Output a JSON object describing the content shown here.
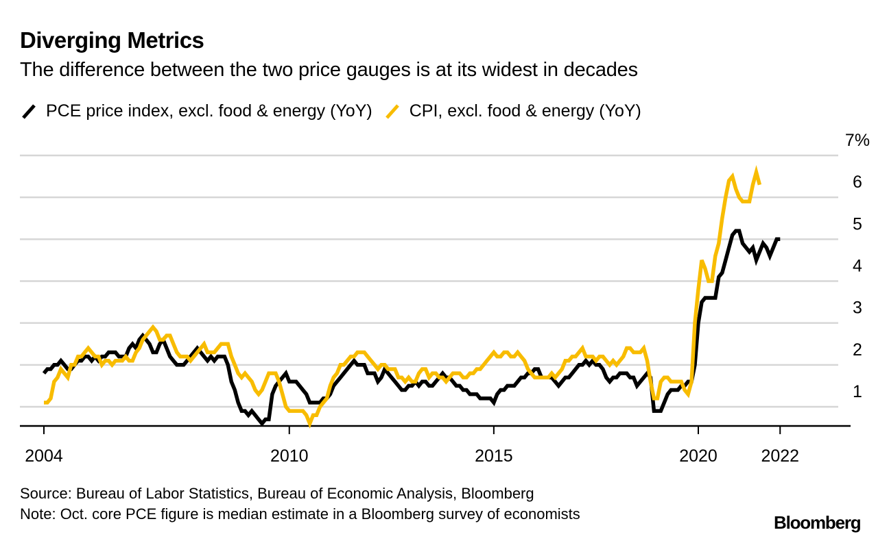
{
  "title": "Diverging Metrics",
  "subtitle": "The difference between the two price gauges is at its widest in decades",
  "legend": [
    {
      "label": "PCE price index, excl. food & energy (YoY)",
      "color": "#000000"
    },
    {
      "label": "CPI, excl. food & energy (YoY)",
      "color": "#F8BC00"
    }
  ],
  "source": "Source: Bureau of Labor Statistics, Bureau of Economic Analysis, Bloomberg",
  "note": "Note: Oct. core PCE figure is median estimate in a Bloomberg survey of economists",
  "brand": "Bloomberg",
  "chart_data": {
    "type": "line",
    "title": "Diverging Metrics",
    "subtitle": "The difference between the two price gauges is at its widest in decades",
    "xlabel": "",
    "ylabel": "",
    "x_start": "2004-01",
    "x_end": "2022-10",
    "frequency": "monthly",
    "xlim": [
      2004.0,
      2022.83
    ],
    "ylim": [
      0.55,
      7
    ],
    "y_ticks": [
      1,
      2,
      3,
      4,
      5,
      6,
      7
    ],
    "y_tick_labels": [
      "1",
      "2",
      "3",
      "4",
      "5",
      "6",
      "7%"
    ],
    "x_ticks": [
      2004,
      2010,
      2015,
      2020,
      2022
    ],
    "x_tick_labels": [
      "2004",
      "2010",
      "2015",
      "2020",
      "2022"
    ],
    "grid": true,
    "legend_position": "top-left",
    "series": [
      {
        "name": "PCE price index, excl. food & energy (YoY)",
        "color": "#000000",
        "values": [
          1.8,
          1.9,
          1.9,
          2.0,
          2.0,
          2.1,
          2.0,
          1.9,
          1.9,
          2.0,
          2.1,
          2.1,
          2.2,
          2.2,
          2.1,
          2.2,
          2.1,
          2.2,
          2.2,
          2.3,
          2.3,
          2.3,
          2.2,
          2.2,
          2.2,
          2.4,
          2.5,
          2.4,
          2.6,
          2.7,
          2.6,
          2.5,
          2.3,
          2.3,
          2.5,
          2.6,
          2.4,
          2.2,
          2.1,
          2.0,
          2.0,
          2.0,
          2.1,
          2.2,
          2.3,
          2.4,
          2.3,
          2.2,
          2.1,
          2.2,
          2.1,
          2.2,
          2.2,
          2.2,
          2.0,
          1.6,
          1.4,
          1.1,
          0.9,
          0.9,
          0.8,
          0.9,
          0.8,
          0.7,
          0.6,
          0.7,
          0.7,
          1.3,
          1.5,
          1.6,
          1.7,
          1.8,
          1.6,
          1.6,
          1.6,
          1.5,
          1.4,
          1.3,
          1.1,
          1.1,
          1.1,
          1.1,
          1.2,
          1.2,
          1.3,
          1.5,
          1.6,
          1.7,
          1.8,
          1.9,
          2.0,
          2.1,
          2.0,
          2.0,
          2.0,
          1.8,
          1.8,
          1.8,
          1.6,
          1.7,
          1.9,
          1.8,
          1.7,
          1.6,
          1.5,
          1.4,
          1.4,
          1.5,
          1.5,
          1.6,
          1.5,
          1.6,
          1.6,
          1.5,
          1.5,
          1.6,
          1.7,
          1.8,
          1.7,
          1.7,
          1.6,
          1.5,
          1.5,
          1.4,
          1.4,
          1.3,
          1.3,
          1.3,
          1.2,
          1.2,
          1.2,
          1.2,
          1.1,
          1.3,
          1.4,
          1.4,
          1.5,
          1.5,
          1.5,
          1.6,
          1.7,
          1.7,
          1.8,
          1.8,
          1.9,
          1.9,
          1.7,
          1.7,
          1.7,
          1.7,
          1.6,
          1.5,
          1.6,
          1.7,
          1.7,
          1.8,
          1.9,
          2.0,
          2.0,
          2.1,
          2.0,
          2.1,
          2.0,
          2.0,
          1.9,
          1.7,
          1.6,
          1.7,
          1.7,
          1.8,
          1.8,
          1.8,
          1.7,
          1.7,
          1.5,
          1.6,
          1.7,
          1.8,
          1.7,
          0.9,
          0.9,
          0.9,
          1.1,
          1.3,
          1.4,
          1.4,
          1.4,
          1.5,
          1.5,
          1.6,
          1.6,
          2.0,
          3.0,
          3.5,
          3.6,
          3.6,
          3.6,
          3.6,
          4.1,
          4.2,
          4.5,
          4.8,
          5.1,
          5.2,
          5.2,
          4.9,
          4.8,
          4.7,
          4.8,
          4.5,
          4.7,
          4.9,
          4.8,
          4.6,
          4.8,
          5.0,
          5.0
        ]
      },
      {
        "name": "CPI, excl. food & energy (YoY)",
        "color": "#F8BC00",
        "values": [
          1.1,
          1.1,
          1.2,
          1.6,
          1.7,
          1.9,
          1.8,
          1.7,
          2.0,
          2.0,
          2.2,
          2.2,
          2.3,
          2.4,
          2.3,
          2.2,
          2.2,
          2.0,
          2.1,
          2.1,
          2.0,
          2.1,
          2.1,
          2.1,
          2.2,
          2.1,
          2.1,
          2.3,
          2.4,
          2.6,
          2.7,
          2.8,
          2.9,
          2.8,
          2.6,
          2.6,
          2.7,
          2.7,
          2.5,
          2.3,
          2.2,
          2.2,
          2.2,
          2.1,
          2.2,
          2.3,
          2.4,
          2.5,
          2.3,
          2.3,
          2.3,
          2.4,
          2.5,
          2.5,
          2.5,
          2.2,
          2.0,
          1.8,
          1.7,
          1.8,
          1.7,
          1.6,
          1.4,
          1.3,
          1.4,
          1.6,
          1.8,
          1.8,
          1.8,
          1.6,
          1.3,
          1.0,
          0.9,
          0.9,
          0.9,
          0.9,
          0.9,
          0.8,
          0.6,
          0.8,
          0.8,
          1.0,
          1.1,
          1.2,
          1.5,
          1.7,
          1.8,
          2.0,
          2.0,
          2.1,
          2.2,
          2.2,
          2.3,
          2.3,
          2.3,
          2.2,
          2.1,
          2.0,
          1.9,
          2.0,
          2.0,
          1.9,
          1.9,
          1.9,
          1.7,
          1.7,
          1.6,
          1.7,
          1.6,
          1.6,
          1.8,
          1.9,
          1.9,
          1.7,
          1.8,
          1.8,
          1.7,
          1.7,
          1.6,
          1.7,
          1.8,
          1.8,
          1.8,
          1.7,
          1.7,
          1.8,
          1.8,
          1.9,
          1.9,
          2.0,
          2.1,
          2.2,
          2.3,
          2.2,
          2.2,
          2.3,
          2.3,
          2.2,
          2.2,
          2.3,
          2.2,
          2.1,
          1.9,
          1.8,
          1.7,
          1.7,
          1.7,
          1.7,
          1.7,
          1.8,
          1.7,
          1.8,
          1.9,
          2.1,
          2.1,
          2.2,
          2.2,
          2.3,
          2.4,
          2.2,
          2.2,
          2.2,
          2.1,
          2.2,
          2.2,
          2.1,
          2.0,
          2.1,
          2.0,
          2.1,
          2.2,
          2.4,
          2.4,
          2.3,
          2.3,
          2.3,
          2.4,
          2.1,
          1.6,
          1.2,
          1.2,
          1.6,
          1.7,
          1.7,
          1.6,
          1.6,
          1.6,
          1.6,
          1.4,
          1.3,
          1.6,
          3.0,
          3.8,
          4.5,
          4.3,
          4.0,
          4.0,
          4.6,
          4.9,
          5.5,
          6.0,
          6.4,
          6.5,
          6.2,
          6.0,
          5.9,
          5.9,
          5.9,
          6.3,
          6.6,
          6.3
        ]
      }
    ]
  }
}
